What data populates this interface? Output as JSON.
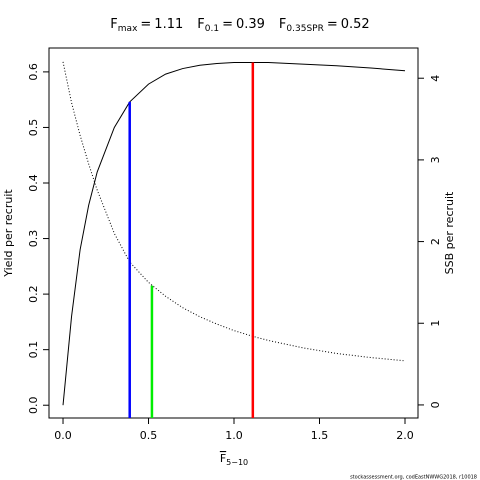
{
  "chart_data": {
    "type": "line",
    "title_parts": [
      {
        "name": "F",
        "sub": "max",
        "sep": "=",
        "value": 1.11,
        "color": "#ff0000",
        "top": 0.617,
        "top_axis": "y"
      },
      {
        "name": "F",
        "sub": "0.1",
        "sep": "=",
        "value": 0.39,
        "color": "#0000ff",
        "top": 0.546,
        "top_axis": "y"
      },
      {
        "name": "F",
        "sub": "0.35SPR",
        "sep": "=",
        "value": 0.52,
        "color": "#00ee00",
        "top": 1.46,
        "top_axis": "y2"
      }
    ],
    "xlabel": {
      "text": "F",
      "sub": "5−10"
    },
    "ylabel": "Yield per recruit",
    "y2label": "SSB per recruit",
    "footer": "stockassessment.org, codEastNWWG2018, r10018",
    "x": [
      0,
      0.05,
      0.1,
      0.15,
      0.2,
      0.3,
      0.39,
      0.5,
      0.6,
      0.7,
      0.8,
      0.9,
      1.0,
      1.11,
      1.2,
      1.4,
      1.6,
      1.8,
      2.0
    ],
    "series": [
      {
        "name": "Yield per recruit",
        "axis": "y",
        "style": "solid",
        "color": "#000000",
        "values": [
          0,
          0.16,
          0.28,
          0.36,
          0.42,
          0.5,
          0.546,
          0.578,
          0.596,
          0.606,
          0.612,
          0.615,
          0.617,
          0.617,
          0.617,
          0.614,
          0.611,
          0.607,
          0.602
        ]
      },
      {
        "name": "SSB per recruit",
        "axis": "y2",
        "style": "dotted",
        "color": "#000000",
        "values": [
          4.2,
          3.7,
          3.3,
          2.95,
          2.63,
          2.1,
          1.75,
          1.5,
          1.33,
          1.19,
          1.08,
          0.99,
          0.91,
          0.84,
          0.79,
          0.7,
          0.63,
          0.58,
          0.54
        ]
      }
    ],
    "xlim": [
      -0.082,
      2.076
    ],
    "ylim": [
      -0.023,
      0.643
    ],
    "y2lim": [
      -0.16,
      4.37
    ],
    "xticks": [
      {
        "value": 0,
        "label": "0.0"
      },
      {
        "value": 0.5,
        "label": "0.5"
      },
      {
        "value": 1,
        "label": "1.0"
      },
      {
        "value": 1.5,
        "label": "1.5"
      },
      {
        "value": 2,
        "label": "2.0"
      }
    ],
    "yticks": [
      {
        "value": 0,
        "label": "0.0"
      },
      {
        "value": 0.1,
        "label": "0.1"
      },
      {
        "value": 0.2,
        "label": "0.2"
      },
      {
        "value": 0.3,
        "label": "0.3"
      },
      {
        "value": 0.4,
        "label": "0.4"
      },
      {
        "value": 0.5,
        "label": "0.5"
      },
      {
        "value": 0.6,
        "label": "0.6"
      }
    ],
    "y2ticks": [
      0,
      1,
      2,
      3,
      4
    ]
  }
}
